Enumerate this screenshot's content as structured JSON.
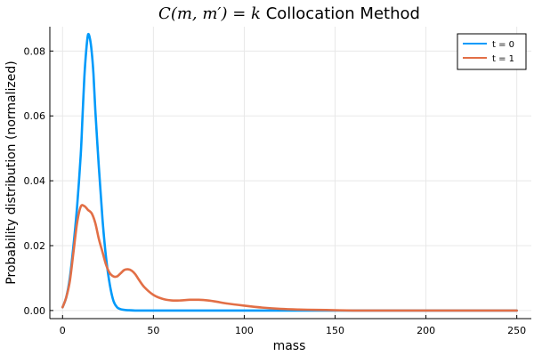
{
  "chart_data": {
    "type": "line",
    "title": {
      "math": "C(m, m′) = k",
      "text": "Collocation Method"
    },
    "xlabel": "mass",
    "ylabel": "Probability distribution (normalized)",
    "xlim": [
      -7,
      258
    ],
    "ylim": [
      -0.0025,
      0.0875
    ],
    "xticks": [
      0,
      50,
      100,
      150,
      200,
      250
    ],
    "yticks": [
      0.0,
      0.02,
      0.04,
      0.06,
      0.08
    ],
    "ytick_labels": [
      "0.00",
      "0.02",
      "0.04",
      "0.06",
      "0.08"
    ],
    "grid": true,
    "legend": "top-right",
    "series": [
      {
        "name": "t = 0",
        "color": "#009AFA",
        "x": [
          0,
          2,
          4,
          6,
          8,
          10,
          11,
          12,
          13,
          14,
          15,
          16,
          17,
          18,
          20,
          22,
          24,
          26,
          28,
          30,
          32,
          34,
          36,
          40,
          50,
          100,
          150,
          200,
          250
        ],
        "y": [
          0.001,
          0.004,
          0.01,
          0.02,
          0.032,
          0.048,
          0.06,
          0.072,
          0.08,
          0.085,
          0.084,
          0.08,
          0.073,
          0.062,
          0.044,
          0.028,
          0.016,
          0.008,
          0.003,
          0.001,
          0.0004,
          0.0002,
          0.0001,
          0.0,
          0.0,
          0.0,
          0.0,
          0.0,
          0.0
        ]
      },
      {
        "name": "t = 1",
        "color": "#E26F46",
        "x": [
          0,
          2,
          4,
          6,
          8,
          10,
          12,
          14,
          16,
          18,
          20,
          22,
          24,
          26,
          28,
          30,
          32,
          34,
          36,
          38,
          40,
          42,
          45,
          50,
          55,
          60,
          65,
          70,
          75,
          80,
          85,
          90,
          100,
          110,
          120,
          130,
          140,
          150,
          160,
          180,
          200,
          220,
          250
        ],
        "y": [
          0.001,
          0.004,
          0.009,
          0.018,
          0.027,
          0.032,
          0.0322,
          0.031,
          0.03,
          0.027,
          0.022,
          0.018,
          0.014,
          0.0115,
          0.0105,
          0.0105,
          0.0115,
          0.0125,
          0.0127,
          0.0123,
          0.0112,
          0.0095,
          0.0072,
          0.0048,
          0.0036,
          0.0031,
          0.0031,
          0.0033,
          0.0033,
          0.0031,
          0.0027,
          0.0022,
          0.0015,
          0.0009,
          0.0005,
          0.0003,
          0.0002,
          0.0001,
          0.0,
          0.0,
          0.0,
          0.0,
          0.0
        ]
      }
    ]
  }
}
